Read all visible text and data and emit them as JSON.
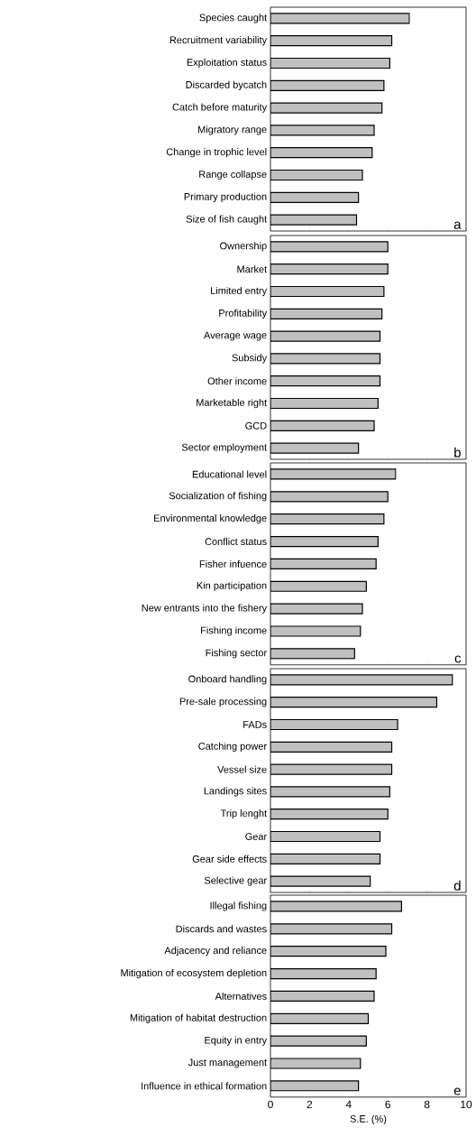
{
  "chart_data": [
    {
      "type": "bar",
      "orientation": "horizontal",
      "categories": [
        "Species caught",
        "Recruitment variability",
        "Exploitation status",
        "Discarded bycatch",
        "Catch before maturity",
        "Migratory range",
        "Change in trophic level",
        "Range collapse",
        "Primary production",
        "Size of fish caught"
      ],
      "values": [
        7.1,
        6.2,
        6.1,
        5.8,
        5.7,
        5.3,
        5.2,
        4.7,
        4.5,
        4.4
      ],
      "color": "#c0c0c0",
      "xlim": [
        0,
        10
      ],
      "xticks": [
        0,
        2,
        4,
        6,
        8,
        10
      ],
      "tick_labels": "y",
      "annotations": [
        "a"
      ]
    },
    {
      "type": "bar",
      "orientation": "horizontal",
      "categories": [
        "Ownership",
        "Market",
        "Limited entry",
        "Profitability",
        "Average wage",
        "Subsidy",
        "Other income",
        "Marketable right",
        "GCD",
        "Sector employment"
      ],
      "values": [
        6.0,
        6.0,
        5.8,
        5.7,
        5.6,
        5.6,
        5.6,
        5.5,
        5.3,
        4.5
      ],
      "color": "#c0c0c0",
      "xlim": [
        0,
        10
      ],
      "xticks": [
        0,
        2,
        4,
        6,
        8,
        10
      ],
      "tick_labels": "y",
      "annotations": [
        "b"
      ]
    },
    {
      "type": "bar",
      "orientation": "horizontal",
      "categories": [
        "Educational level",
        "Socialization of fishing",
        "Environmental knowledge",
        "Conflict status",
        "Fisher infuence",
        "Kin participation",
        "New entrants into the fishery",
        "Fishing income",
        "Fishing sector"
      ],
      "values": [
        6.4,
        6.0,
        5.8,
        5.5,
        5.4,
        4.9,
        4.7,
        4.6,
        4.3
      ],
      "color": "#c0c0c0",
      "xlim": [
        0,
        10
      ],
      "xticks": [
        0,
        2,
        4,
        6,
        8,
        10
      ],
      "tick_labels": "y",
      "annotations": [
        "c"
      ]
    },
    {
      "type": "bar",
      "orientation": "horizontal",
      "categories": [
        "Onboard handling",
        "Pre-sale processing",
        "FADs",
        "Catching power",
        "Vessel size",
        "Landings sites",
        "Trip lenght",
        "Gear",
        "Gear side effects",
        "Selective gear"
      ],
      "values": [
        9.3,
        8.5,
        6.5,
        6.2,
        6.2,
        6.1,
        6.0,
        5.6,
        5.6,
        5.1
      ],
      "color": "#c0c0c0",
      "xlim": [
        0,
        10
      ],
      "xticks": [
        0,
        2,
        4,
        6,
        8,
        10
      ],
      "tick_labels": "y",
      "annotations": [
        "d"
      ]
    },
    {
      "type": "bar",
      "orientation": "horizontal",
      "categories": [
        "Illegal fishing",
        "Discards and wastes",
        "Adjacency and reliance",
        "Mitigation of ecosystem depletion",
        "Alternatives",
        "Mitigation of habitat destruction",
        "Equity in entry",
        "Just management",
        "Influence in ethical formation"
      ],
      "values": [
        6.7,
        6.2,
        5.9,
        5.4,
        5.3,
        5.0,
        4.9,
        4.6,
        4.5
      ],
      "color": "#c0c0c0",
      "xlim": [
        0,
        10
      ],
      "xticks": [
        0,
        2,
        4,
        6,
        8,
        10
      ],
      "xlabel": "S.E. (%)",
      "annotations": [
        "e"
      ]
    }
  ]
}
